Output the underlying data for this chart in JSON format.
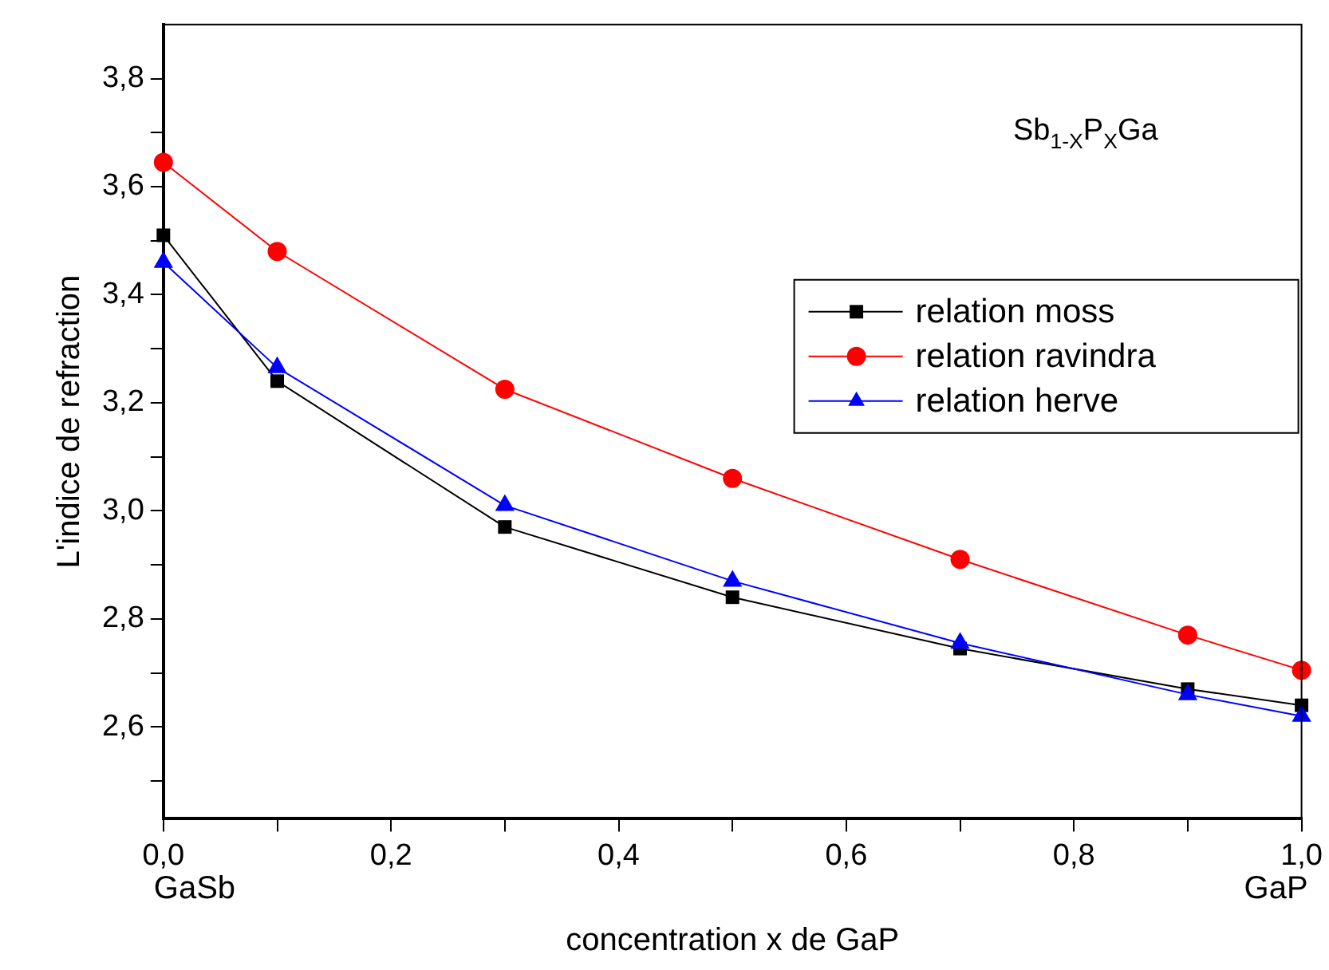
{
  "chart_data": {
    "type": "line",
    "xlabel": "concentration x de GaP",
    "ylabel": "L'indice de refraction",
    "x": [
      0,
      0.1,
      0.3,
      0.5,
      0.7,
      0.9,
      1.0
    ],
    "series": [
      {
        "name": "relation moss",
        "color": "#000000",
        "marker": "square",
        "values": [
          3.51,
          3.24,
          2.97,
          2.84,
          2.745,
          2.67,
          2.64
        ]
      },
      {
        "name": "relation ravindra",
        "color": "#ff0000",
        "marker": "circle",
        "values": [
          3.645,
          3.48,
          3.225,
          3.06,
          2.91,
          2.77,
          2.705
        ]
      },
      {
        "name": "relation herve",
        "color": "#0000ff",
        "marker": "triangle",
        "values": [
          3.46,
          3.265,
          3.01,
          2.87,
          2.755,
          2.66,
          2.62
        ]
      }
    ],
    "xlim": [
      0,
      1.0
    ],
    "xticks": [
      {
        "value": 0,
        "label": "0,0"
      },
      {
        "value": 0.1,
        "label": null
      },
      {
        "value": 0.2,
        "label": "0,2"
      },
      {
        "value": 0.3,
        "label": null
      },
      {
        "value": 0.4,
        "label": "0,4"
      },
      {
        "value": 0.5,
        "label": null
      },
      {
        "value": 0.6,
        "label": "0,6"
      },
      {
        "value": 0.7,
        "label": null
      },
      {
        "value": 0.8,
        "label": "0,8"
      },
      {
        "value": 0.9,
        "label": null
      },
      {
        "value": 1.0,
        "label": "1,0"
      }
    ],
    "ylim": [
      2.43,
      3.9
    ],
    "yticks": [
      {
        "value": 2.5,
        "label": null
      },
      {
        "value": 2.6,
        "label": "2,6"
      },
      {
        "value": 2.7,
        "label": null
      },
      {
        "value": 2.8,
        "label": "2,8"
      },
      {
        "value": 2.9,
        "label": null
      },
      {
        "value": 3.0,
        "label": "3,0"
      },
      {
        "value": 3.1,
        "label": null
      },
      {
        "value": 3.2,
        "label": "3,2"
      },
      {
        "value": 3.3,
        "label": null
      },
      {
        "value": 3.4,
        "label": "3,4"
      },
      {
        "value": 3.5,
        "label": null
      },
      {
        "value": 3.6,
        "label": "3,6"
      },
      {
        "value": 3.7,
        "label": null
      },
      {
        "value": 3.8,
        "label": "3,8"
      }
    ],
    "grid": false,
    "legend": "right",
    "line_style": "solid",
    "annotations": [
      "Sb$_{1-X}$P$_{X}$Ga",
      "GaSb",
      "GaP"
    ]
  }
}
